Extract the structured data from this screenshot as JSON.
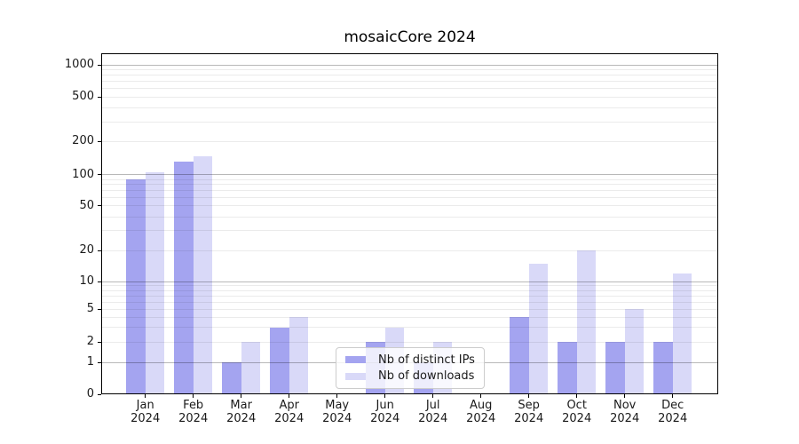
{
  "chart_data": {
    "type": "bar",
    "title": "mosaicCore 2024",
    "x_axis": {
      "months": [
        "Jan",
        "Feb",
        "Mar",
        "Apr",
        "May",
        "Jun",
        "Jul",
        "Aug",
        "Sep",
        "Oct",
        "Nov",
        "Dec"
      ],
      "year": "2024"
    },
    "y_axis": {
      "scale": "log-like-with-zero",
      "ticks": [
        0,
        1,
        2,
        5,
        10,
        20,
        50,
        100,
        200,
        500,
        1000
      ],
      "major_gridline_values": [
        1,
        10,
        100,
        1000
      ],
      "range": [
        0,
        1000
      ],
      "grid": "on"
    },
    "series": [
      {
        "name": "Nb of distinct IPs",
        "color": "#a4a4f0",
        "values": [
          90,
          130,
          1,
          3,
          0,
          2,
          1,
          0,
          4,
          2,
          2,
          2
        ]
      },
      {
        "name": "Nb of downloads",
        "color": "#d9d9f8",
        "values": [
          105,
          145,
          2,
          4,
          0,
          3,
          2,
          0,
          15,
          20,
          5,
          12
        ]
      }
    ],
    "legend_position": "bottom-center-inside",
    "colors": {
      "axis": "#000000",
      "grid_major": "rgba(0,0,0,0.28)",
      "grid_minor": "rgba(0,0,0,0.08)",
      "background": "#ffffff"
    }
  }
}
